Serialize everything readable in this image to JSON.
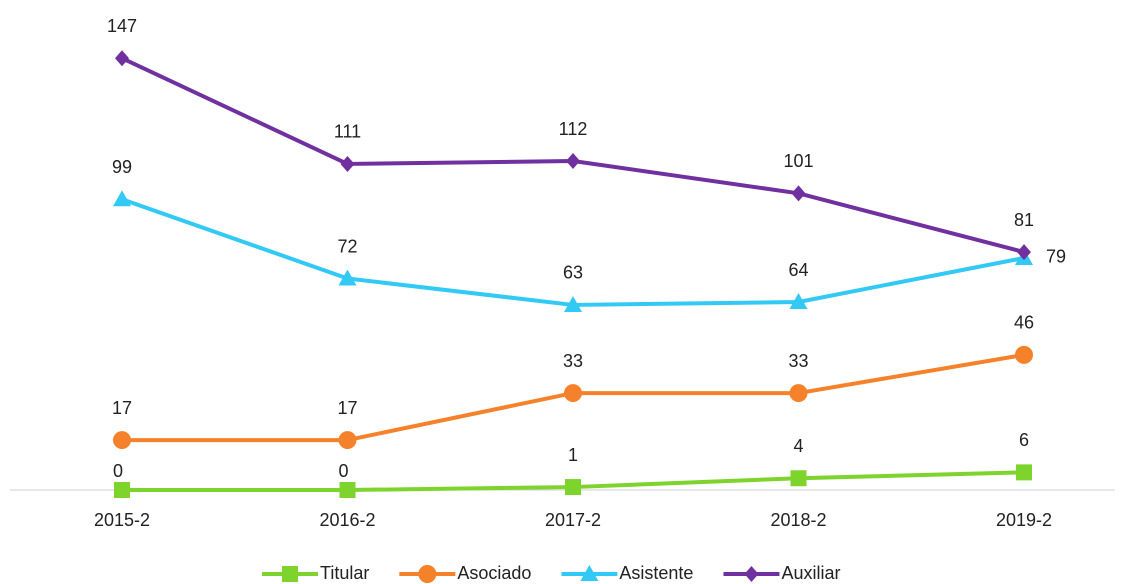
{
  "chart_data": {
    "type": "line",
    "categories": [
      "2015-2",
      "2016-2",
      "2017-2",
      "2018-2",
      "2019-2"
    ],
    "series": [
      {
        "name": "Titular",
        "color": "#7ed32c",
        "marker": "square",
        "values": [
          0,
          0,
          1,
          4,
          6
        ]
      },
      {
        "name": "Asociado",
        "color": "#f5822a",
        "marker": "circle",
        "values": [
          17,
          17,
          33,
          33,
          46
        ]
      },
      {
        "name": "Asistente",
        "color": "#33c9f5",
        "marker": "triangle",
        "values": [
          99,
          72,
          63,
          64,
          79
        ]
      },
      {
        "name": "Auxiliar",
        "color": "#7030a0",
        "marker": "diamond",
        "values": [
          147,
          111,
          112,
          101,
          81
        ]
      }
    ],
    "ylim": [
      0,
      160
    ],
    "grid": false,
    "legend": "bottom"
  }
}
